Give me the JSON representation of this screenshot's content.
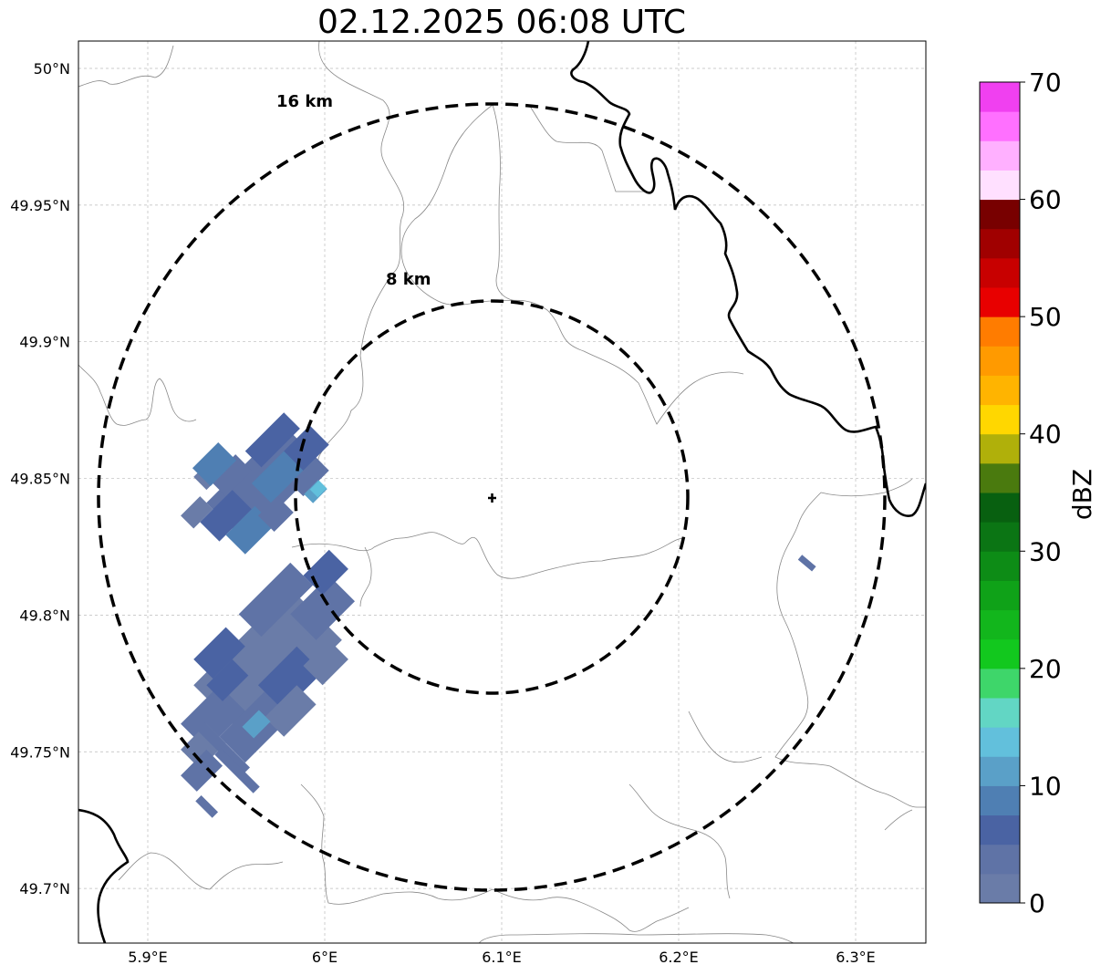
{
  "title": "02.12.2025 06:08 UTC",
  "map": {
    "lon_ticks": [
      {
        "value": 5.9,
        "label": "5.9°E"
      },
      {
        "value": 6.0,
        "label": "6°E"
      },
      {
        "value": 6.1,
        "label": "6.1°E"
      },
      {
        "value": 6.2,
        "label": "6.2°E"
      },
      {
        "value": 6.3,
        "label": "6.3°E"
      }
    ],
    "lat_ticks": [
      {
        "value": 50.0,
        "label": "50°N"
      },
      {
        "value": 49.95,
        "label": "49.95°N"
      },
      {
        "value": 49.9,
        "label": "49.9°N"
      },
      {
        "value": 49.85,
        "label": "49.85°N"
      },
      {
        "value": 49.8,
        "label": "49.8°N"
      },
      {
        "value": 49.75,
        "label": "49.75°N"
      },
      {
        "value": 49.7,
        "label": "49.7°N"
      }
    ],
    "grid": true,
    "radar_site": {
      "lon": 6.094,
      "lat": 49.843
    },
    "range_rings": [
      {
        "radius_km": 8,
        "label": "8 km"
      },
      {
        "radius_km": 16,
        "label": "16 km"
      }
    ]
  },
  "colorbar": {
    "unit_label": "dBZ",
    "min": 0,
    "max": 70,
    "tick_labels": [
      "0",
      "10",
      "20",
      "30",
      "40",
      "50",
      "60",
      "70"
    ],
    "colors": [
      "#6a7ca8",
      "#5f73a6",
      "#4a63a3",
      "#4f7fb3",
      "#5aa0c8",
      "#62c0dc",
      "#62d6c4",
      "#3ed66a",
      "#12c81e",
      "#12b61c",
      "#0fa218",
      "#0d8c16",
      "#0b7514",
      "#086010",
      "#4a7a0e",
      "#b0b00a",
      "#ffd700",
      "#ffb400",
      "#ff9a00",
      "#ff7c00",
      "#e80000",
      "#c80000",
      "#a00000",
      "#780000",
      "#ffe0ff",
      "#ffb0ff",
      "#ff70ff",
      "#f040f0"
    ]
  }
}
